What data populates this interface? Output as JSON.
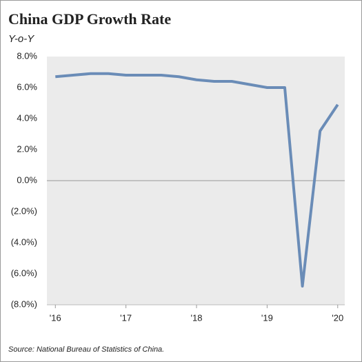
{
  "chart_data": {
    "type": "line",
    "title": "China GDP Growth Rate",
    "subtitle": "Y-o-Y",
    "source": "Source: National Bureau of Statistics of China.",
    "x": [
      2016,
      2016.25,
      2016.5,
      2016.75,
      2017,
      2017.25,
      2017.5,
      2017.75,
      2018,
      2018.25,
      2018.5,
      2018.75,
      2019,
      2019.25,
      2019.5,
      2019.75,
      2020
    ],
    "values": [
      6.7,
      6.8,
      6.9,
      6.9,
      6.8,
      6.8,
      6.8,
      6.7,
      6.5,
      6.4,
      6.4,
      6.2,
      6.0,
      6.0,
      -6.8,
      3.2,
      4.9
    ],
    "color": "#6a8cb7",
    "xlim": [
      2015.88,
      2020.1
    ],
    "xticks": [
      {
        "value": 2016,
        "label": "'16"
      },
      {
        "value": 2017,
        "label": "'17"
      },
      {
        "value": 2018,
        "label": "'18"
      },
      {
        "value": 2019,
        "label": "'19"
      },
      {
        "value": 2020,
        "label": "'20"
      }
    ],
    "ylim": [
      -8,
      8
    ],
    "yticks": [
      {
        "value": 8,
        "label": "8.0%"
      },
      {
        "value": 6,
        "label": "6.0%"
      },
      {
        "value": 4,
        "label": "4.0%"
      },
      {
        "value": 2,
        "label": "2.0%"
      },
      {
        "value": 0,
        "label": "0.0%"
      },
      {
        "value": -2,
        "label": "(2.0%)"
      },
      {
        "value": -4,
        "label": "(4.0%)"
      },
      {
        "value": -6,
        "label": "(6.0%)"
      },
      {
        "value": -8,
        "label": "(8.0%)"
      }
    ]
  }
}
